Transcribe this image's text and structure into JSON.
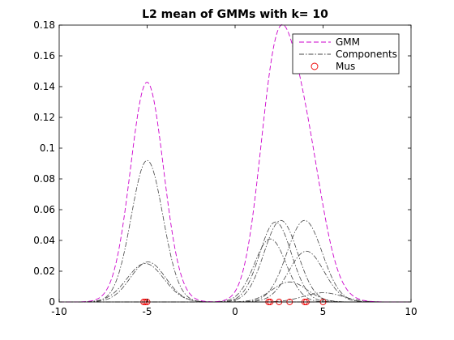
{
  "chart_data": {
    "type": "line",
    "title": "L2 mean of GMMs with k= 10",
    "xlabel": "",
    "ylabel": "",
    "xlim": [
      -10,
      10
    ],
    "ylim": [
      0,
      0.18
    ],
    "x_ticks": [
      -10,
      -5,
      0,
      5,
      10
    ],
    "y_ticks": [
      0,
      0.02,
      0.04,
      0.06,
      0.08,
      0.1,
      0.12,
      0.14,
      0.16,
      0.18
    ],
    "x_tick_labels": [
      "-10",
      "-5",
      "0",
      "5",
      "10"
    ],
    "y_tick_labels": [
      "0",
      "0.02",
      "0.04",
      "0.06",
      "0.08",
      "0.1",
      "0.12",
      "0.14",
      "0.16",
      "0.18"
    ],
    "grid": false,
    "legend": {
      "position": "top-right",
      "entries": [
        {
          "label": "GMM",
          "color": "#cc00cc",
          "style": "dashed"
        },
        {
          "label": "Components",
          "color": "#444444",
          "style": "dashdot"
        },
        {
          "label": "Mus",
          "color": "#ee0000",
          "style": "circle-marker"
        }
      ]
    },
    "components": [
      {
        "mu": -5.0,
        "amp": 0.092,
        "sigma": 0.9
      },
      {
        "mu": -4.95,
        "amp": 0.026,
        "sigma": 1.0
      },
      {
        "mu": -5.1,
        "amp": 0.025,
        "sigma": 1.05
      },
      {
        "mu": 2.0,
        "amp": 0.041,
        "sigma": 0.9
      },
      {
        "mu": 2.3,
        "amp": 0.052,
        "sigma": 0.9
      },
      {
        "mu": 2.6,
        "amp": 0.053,
        "sigma": 0.95
      },
      {
        "mu": 3.1,
        "amp": 0.013,
        "sigma": 1.0
      },
      {
        "mu": 3.95,
        "amp": 0.053,
        "sigma": 1.0
      },
      {
        "mu": 4.05,
        "amp": 0.033,
        "sigma": 1.0
      },
      {
        "mu": 5.0,
        "amp": 0.006,
        "sigma": 1.1
      }
    ],
    "mus": [
      -5.2,
      -5.1,
      -5.0,
      1.9,
      2.0,
      2.5,
      3.1,
      3.95,
      4.05,
      5.0
    ]
  }
}
